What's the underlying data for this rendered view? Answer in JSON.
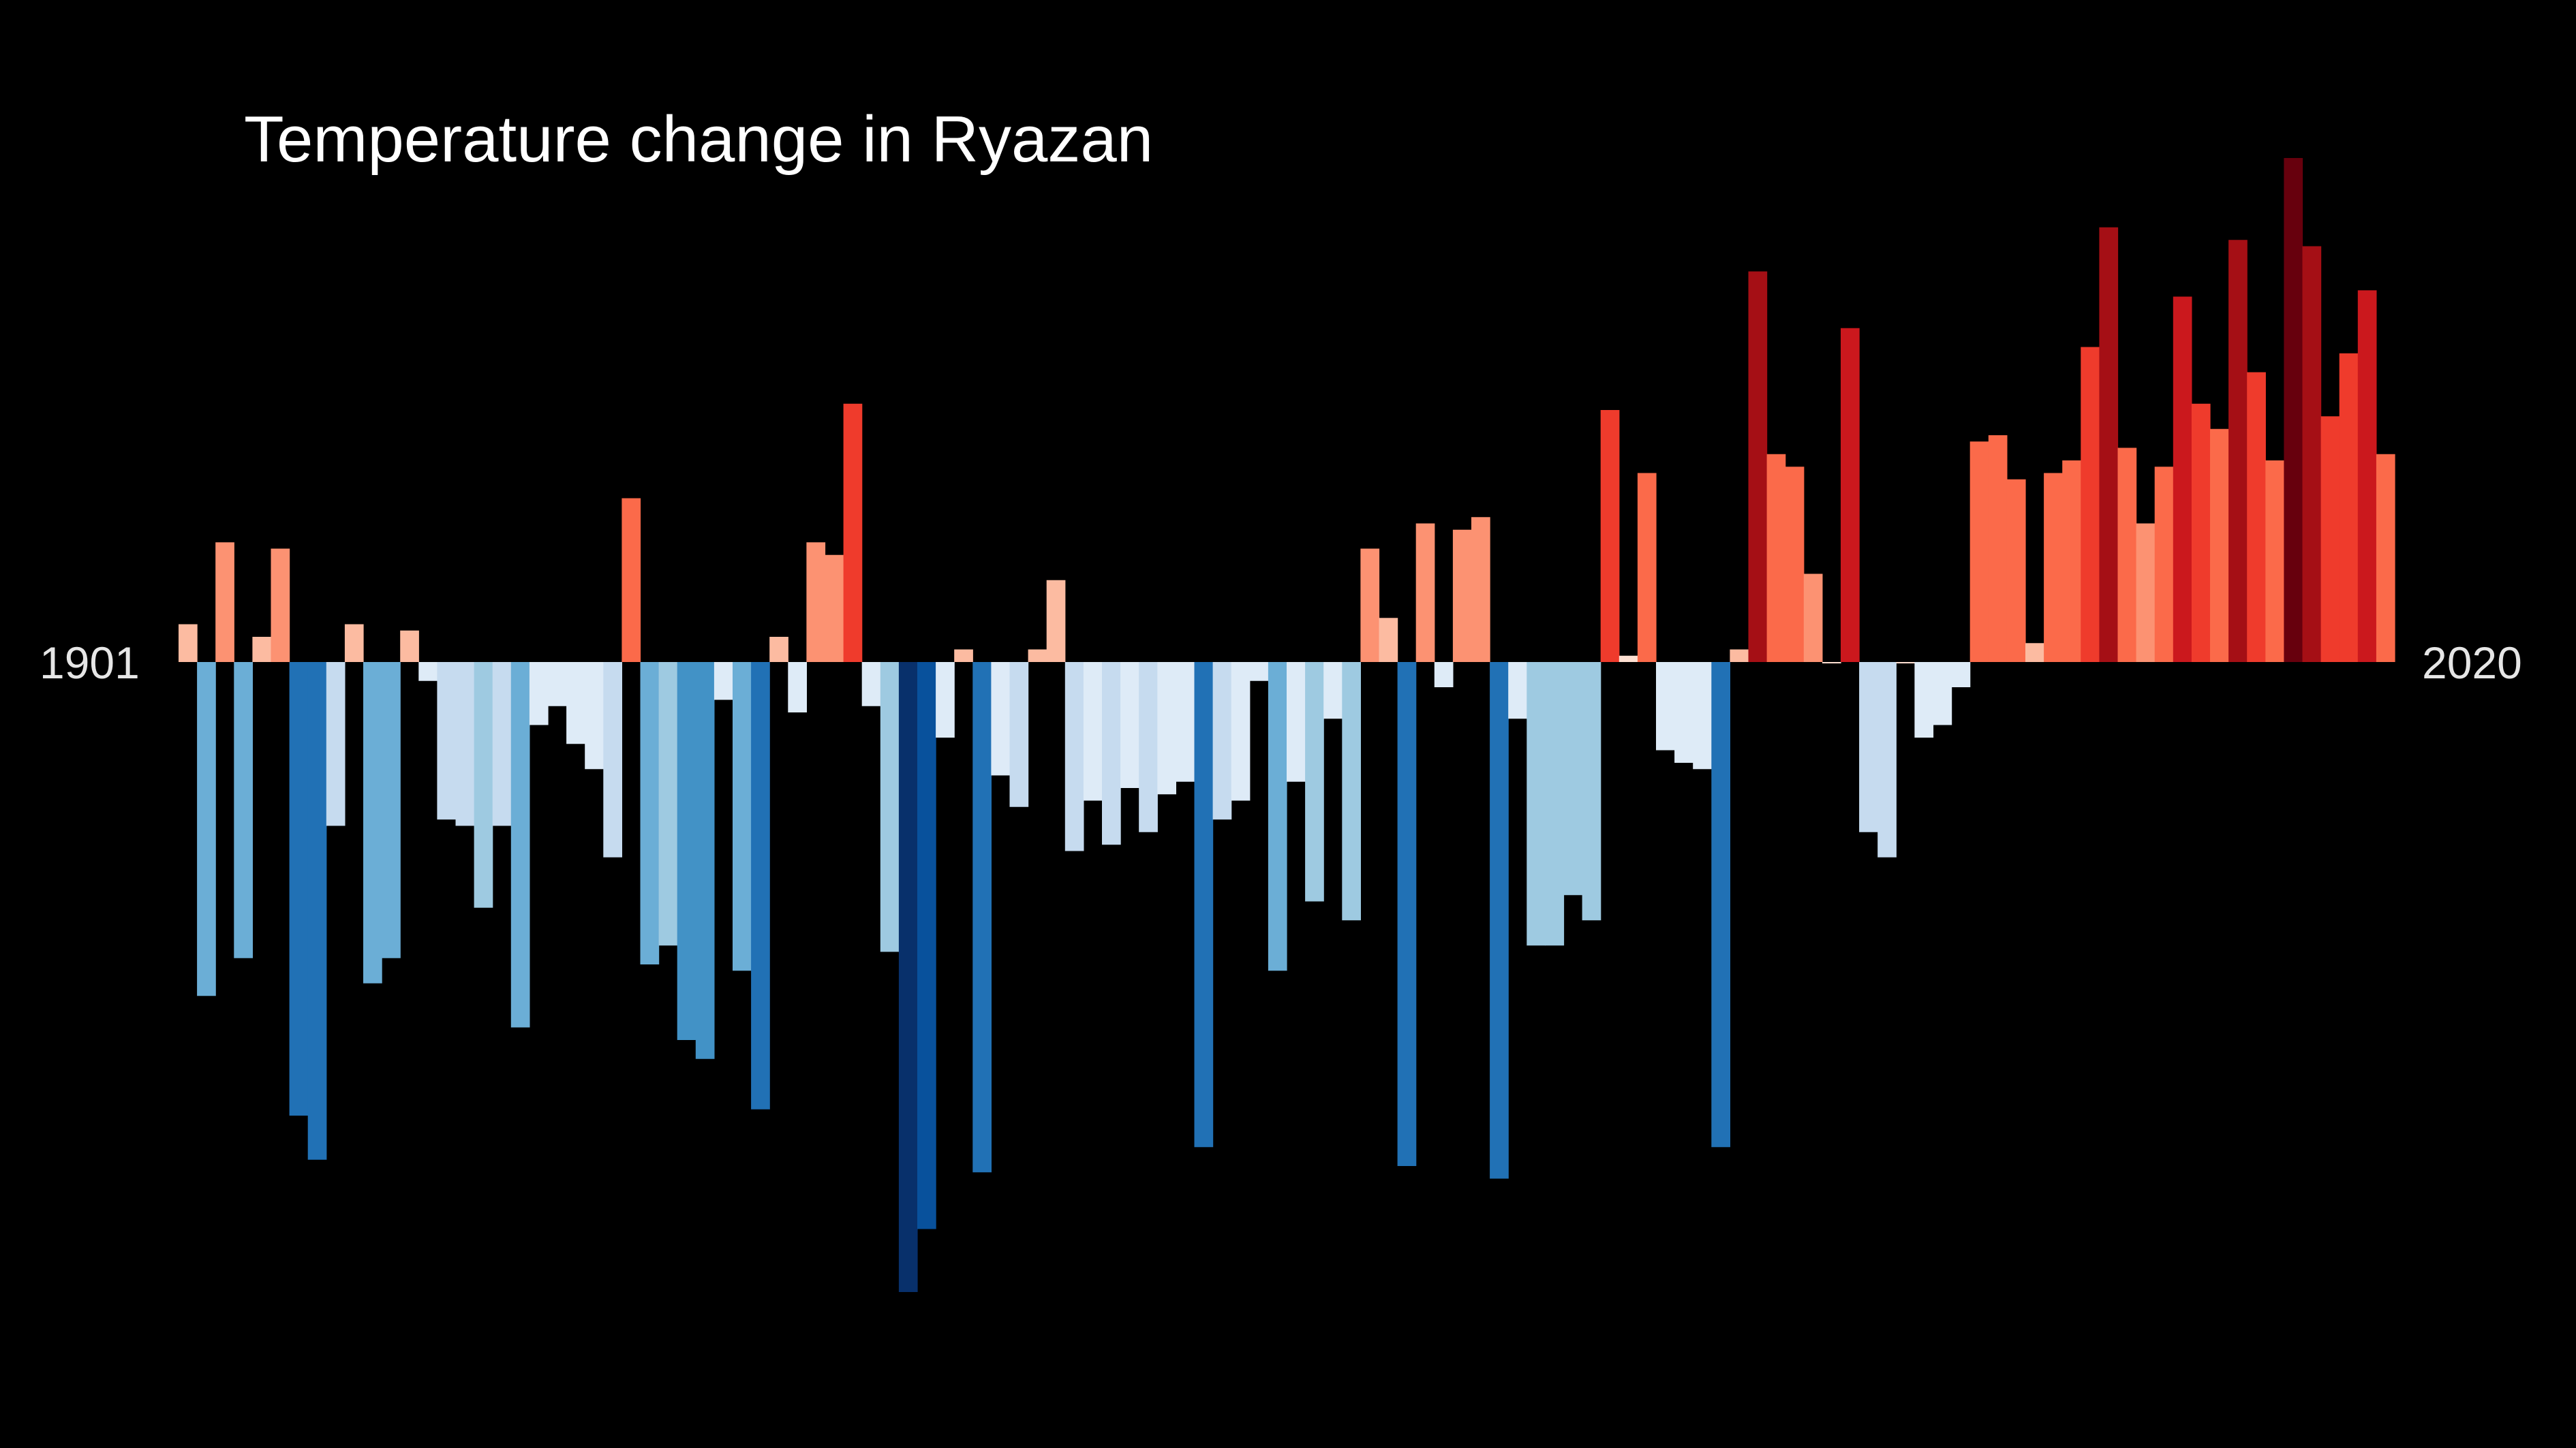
{
  "chart_data": {
    "type": "bar",
    "title": "Temperature change in Ryazan",
    "x_start": 1901,
    "x_end": 2020,
    "xlabel": "",
    "ylabel": "",
    "grid": false,
    "legend": "none",
    "ylim": [
      -1.0,
      0.8
    ],
    "colors": {
      "background": "#000000",
      "title": "#ffffff",
      "year_labels": "#e6e6e6"
    },
    "palette": [
      "#08306b",
      "#08519c",
      "#2171b5",
      "#4292c6",
      "#6baed6",
      "#9ecae1",
      "#c6dbef",
      "#deebf7",
      "#fee0d2",
      "#fcbba1",
      "#fc9272",
      "#fb6a4a",
      "#ef3b2c",
      "#cb181d",
      "#a50f15",
      "#67000d"
    ],
    "years": [
      1901,
      1902,
      1903,
      1904,
      1905,
      1906,
      1907,
      1908,
      1909,
      1910,
      1911,
      1912,
      1913,
      1914,
      1915,
      1916,
      1917,
      1918,
      1919,
      1920,
      1921,
      1922,
      1923,
      1924,
      1925,
      1926,
      1927,
      1928,
      1929,
      1930,
      1931,
      1932,
      1933,
      1934,
      1935,
      1936,
      1937,
      1938,
      1939,
      1940,
      1941,
      1942,
      1943,
      1944,
      1945,
      1946,
      1947,
      1948,
      1949,
      1950,
      1951,
      1952,
      1953,
      1954,
      1955,
      1956,
      1957,
      1958,
      1959,
      1960,
      1961,
      1962,
      1963,
      1964,
      1965,
      1966,
      1967,
      1968,
      1969,
      1970,
      1971,
      1972,
      1973,
      1974,
      1975,
      1976,
      1977,
      1978,
      1979,
      1980,
      1981,
      1982,
      1983,
      1984,
      1985,
      1986,
      1987,
      1988,
      1989,
      1990,
      1991,
      1992,
      1993,
      1994,
      1995,
      1996,
      1997,
      1998,
      1999,
      2000,
      2001,
      2002,
      2003,
      2004,
      2005,
      2006,
      2007,
      2008,
      2009,
      2010,
      2011,
      2012,
      2013,
      2014,
      2015,
      2016,
      2017,
      2018,
      2019,
      2020
    ],
    "values": [
      0.06,
      -0.53,
      0.19,
      -0.47,
      0.04,
      0.18,
      -0.72,
      -0.79,
      -0.26,
      0.06,
      -0.51,
      -0.47,
      0.05,
      -0.03,
      -0.25,
      -0.26,
      -0.39,
      -0.26,
      -0.58,
      -0.1,
      -0.07,
      -0.13,
      -0.17,
      -0.31,
      0.26,
      -0.48,
      -0.45,
      -0.6,
      -0.63,
      -0.06,
      -0.49,
      -0.71,
      0.04,
      -0.08,
      0.19,
      0.17,
      0.41,
      -0.07,
      -0.46,
      -1.0,
      -0.9,
      -0.12,
      0.02,
      -0.81,
      -0.18,
      -0.23,
      0.02,
      0.13,
      -0.3,
      -0.22,
      -0.29,
      -0.2,
      -0.27,
      -0.21,
      -0.19,
      -0.77,
      -0.25,
      -0.22,
      -0.03,
      -0.49,
      -0.19,
      -0.38,
      -0.09,
      -0.41,
      0.18,
      0.07,
      -0.8,
      0.22,
      -0.04,
      0.21,
      0.23,
      -0.82,
      -0.09,
      -0.45,
      -0.45,
      -0.37,
      -0.41,
      0.4,
      0.01,
      0.3,
      -0.14,
      -0.16,
      -0.17,
      -0.77,
      0.02,
      0.62,
      0.33,
      0.31,
      0.14,
      0.0,
      0.53,
      -0.27,
      -0.31,
      0.0,
      -0.12,
      -0.1,
      -0.04,
      0.35,
      0.36,
      0.29,
      0.03,
      0.3,
      0.32,
      0.5,
      0.69,
      0.34,
      0.22,
      0.31,
      0.58,
      0.41,
      0.37,
      0.67,
      0.46,
      0.32,
      0.8,
      0.66,
      0.39,
      0.49,
      0.59,
      0.33
    ]
  }
}
